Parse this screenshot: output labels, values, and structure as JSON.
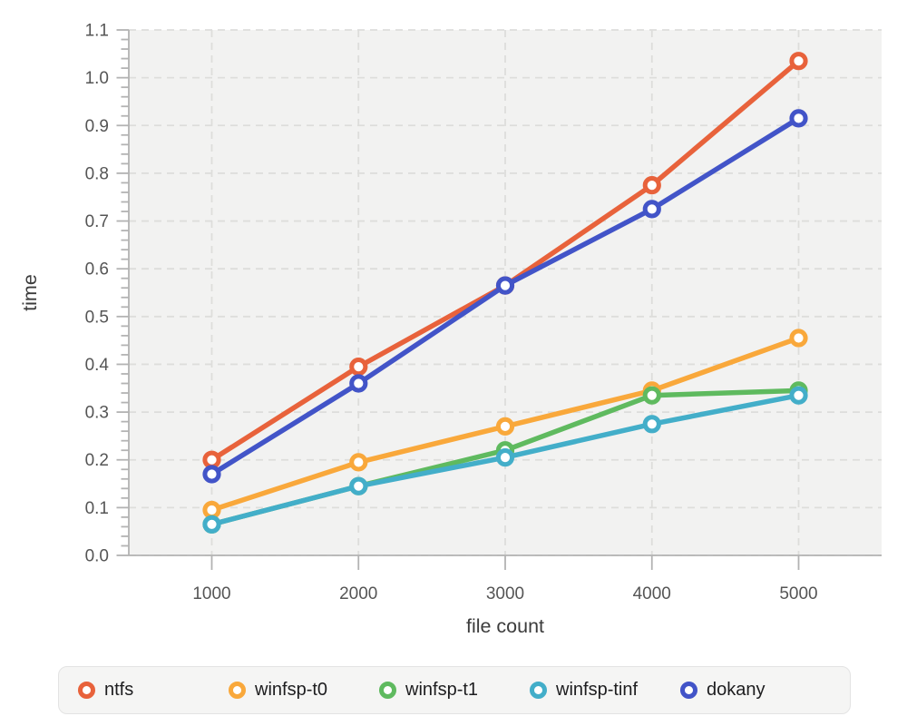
{
  "chart_data": {
    "type": "line",
    "x": [
      1000,
      2000,
      3000,
      4000,
      5000
    ],
    "x_ticks": [
      "1000",
      "2000",
      "3000",
      "4000",
      "5000"
    ],
    "y_ticks": [
      "0.0",
      "0.1",
      "0.2",
      "0.3",
      "0.4",
      "0.5",
      "0.6",
      "0.7",
      "0.8",
      "0.9",
      "1.0",
      "1.1"
    ],
    "ylim": [
      0.0,
      1.1
    ],
    "y_tick_step": 0.1,
    "y_minor_step": 0.02,
    "grid": true,
    "xlabel": "file count",
    "ylabel": "time",
    "legend_position": "bottom",
    "series": [
      {
        "name": "ntfs",
        "color": "#e8623b",
        "values": [
          0.2,
          0.395,
          0.565,
          0.775,
          1.035
        ]
      },
      {
        "name": "winfsp-t0",
        "color": "#f9a83b",
        "values": [
          0.095,
          0.195,
          0.27,
          0.345,
          0.455
        ]
      },
      {
        "name": "winfsp-t1",
        "color": "#5fba5f",
        "values": [
          0.065,
          0.145,
          0.22,
          0.335,
          0.345
        ]
      },
      {
        "name": "winfsp-tinf",
        "color": "#43aec9",
        "values": [
          0.065,
          0.145,
          0.205,
          0.275,
          0.335
        ]
      },
      {
        "name": "dokany",
        "color": "#4254c8",
        "values": [
          0.17,
          0.36,
          0.565,
          0.725,
          0.915
        ]
      }
    ]
  },
  "palette": {
    "plot_bg": "#f2f2f1",
    "grid": "#dddddb",
    "axis": "#b3b3b3",
    "tick_label": "#555555",
    "axis_title": "#3c3c3c",
    "legend_bg": "#f5f5f4",
    "legend_border": "#e3e3e3",
    "legend_text": "#1d1d1f",
    "marker_fill": "#ffffff"
  }
}
